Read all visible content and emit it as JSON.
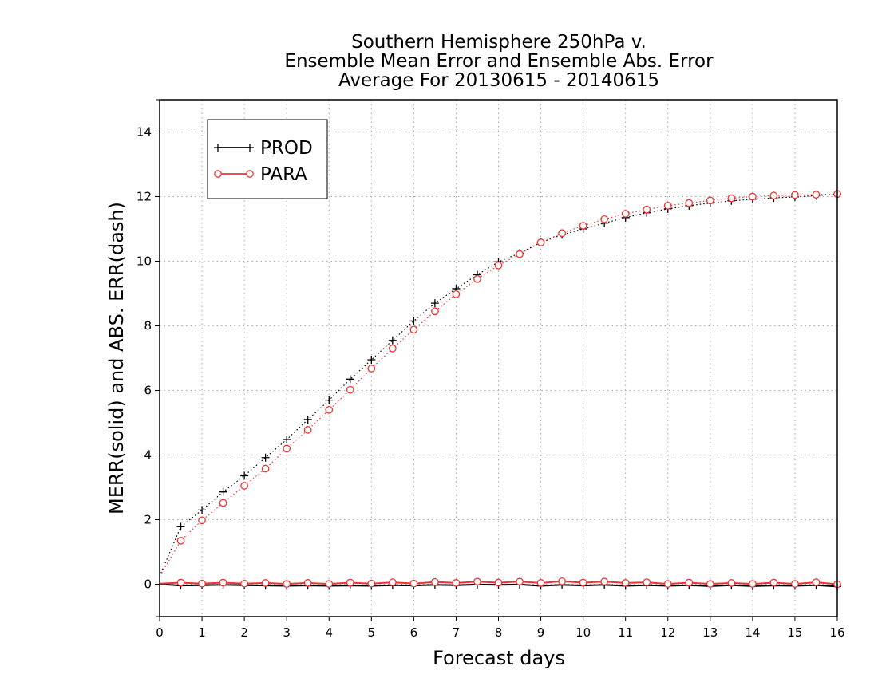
{
  "chart_data": {
    "type": "line",
    "title_lines": [
      "Southern Hemisphere 250hPa v.",
      "Ensemble Mean Error and Ensemble Abs. Error",
      "Average For 20130615 - 20140615"
    ],
    "xlabel": "Forecast days",
    "ylabel": "MERR(solid) and ABS. ERR(dash)",
    "xlim": [
      0,
      16
    ],
    "ylim": [
      -1,
      15
    ],
    "x_ticks": [
      0,
      1,
      2,
      3,
      4,
      5,
      6,
      7,
      8,
      9,
      10,
      11,
      12,
      13,
      14,
      15,
      16
    ],
    "y_ticks": [
      0,
      2,
      4,
      6,
      8,
      10,
      12,
      14
    ],
    "grid": true,
    "legend_position": "top-left",
    "x": [
      0,
      0.5,
      1,
      1.5,
      2,
      2.5,
      3,
      3.5,
      4,
      4.5,
      5,
      5.5,
      6,
      6.5,
      7,
      7.5,
      8,
      8.5,
      9,
      9.5,
      10,
      10.5,
      11,
      11.5,
      12,
      12.5,
      13,
      13.5,
      14,
      14.5,
      15,
      15.5,
      16
    ],
    "series": [
      {
        "name": "PROD",
        "color": "#000000",
        "marker": "plus",
        "abs_err": [
          0.25,
          1.78,
          2.3,
          2.86,
          3.36,
          3.92,
          4.48,
          5.1,
          5.7,
          6.35,
          6.95,
          7.55,
          8.15,
          8.7,
          9.15,
          9.58,
          9.98,
          10.25,
          10.58,
          10.82,
          11.0,
          11.18,
          11.35,
          11.5,
          11.62,
          11.72,
          11.8,
          11.87,
          11.92,
          11.96,
          11.99,
          12.03,
          12.08
        ],
        "mean_err": [
          0.0,
          -0.04,
          -0.03,
          -0.02,
          -0.03,
          -0.04,
          -0.05,
          -0.04,
          -0.05,
          -0.04,
          -0.05,
          -0.03,
          -0.04,
          -0.02,
          -0.03,
          -0.01,
          -0.02,
          -0.01,
          -0.05,
          -0.02,
          -0.04,
          -0.02,
          -0.05,
          -0.03,
          -0.05,
          -0.03,
          -0.06,
          -0.03,
          -0.06,
          -0.04,
          -0.05,
          -0.03,
          -0.07
        ]
      },
      {
        "name": "PARA",
        "color": "#ee3333",
        "marker": "circle",
        "abs_err": [
          0.25,
          1.35,
          1.98,
          2.52,
          3.05,
          3.58,
          4.2,
          4.78,
          5.4,
          6.02,
          6.68,
          7.3,
          7.88,
          8.45,
          8.98,
          9.45,
          9.87,
          10.22,
          10.58,
          10.87,
          11.1,
          11.3,
          11.47,
          11.6,
          11.72,
          11.8,
          11.88,
          11.95,
          12.0,
          12.03,
          12.05,
          12.06,
          12.08
        ],
        "mean_err": [
          0.02,
          0.05,
          0.02,
          0.05,
          0.02,
          0.04,
          0.01,
          0.04,
          0.01,
          0.05,
          0.02,
          0.06,
          0.02,
          0.07,
          0.04,
          0.08,
          0.05,
          0.08,
          0.04,
          0.09,
          0.05,
          0.08,
          0.04,
          0.06,
          0.01,
          0.05,
          0.01,
          0.04,
          0.01,
          0.05,
          0.01,
          0.06,
          0.0
        ]
      }
    ]
  }
}
